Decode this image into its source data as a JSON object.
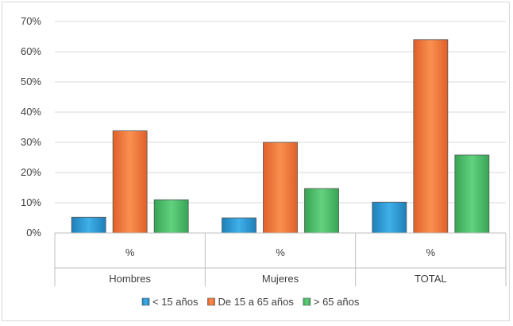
{
  "chart_data": {
    "type": "bar",
    "title": "",
    "xlabel": "",
    "ylabel": "",
    "ylim": [
      0,
      70
    ],
    "yticks": [
      "0%",
      "10%",
      "20%",
      "30%",
      "40%",
      "50%",
      "60%",
      "70%"
    ],
    "grid": true,
    "legend_position": "bottom",
    "x_unit_labels": [
      "%",
      "%",
      "%"
    ],
    "categories": [
      "Hombres",
      "Mujeres",
      "TOTAL"
    ],
    "series": [
      {
        "name": "< 15 años",
        "values": [
          5.2,
          5.0,
          10.2
        ],
        "color": "#2e9bd6"
      },
      {
        "name": "De 15 a 65 años",
        "values": [
          33.8,
          30.0,
          64.0
        ],
        "color": "#f07a3a"
      },
      {
        "name": "> 65 años",
        "values": [
          11.0,
          14.7,
          25.8
        ],
        "color": "#4ebf6a"
      }
    ]
  }
}
